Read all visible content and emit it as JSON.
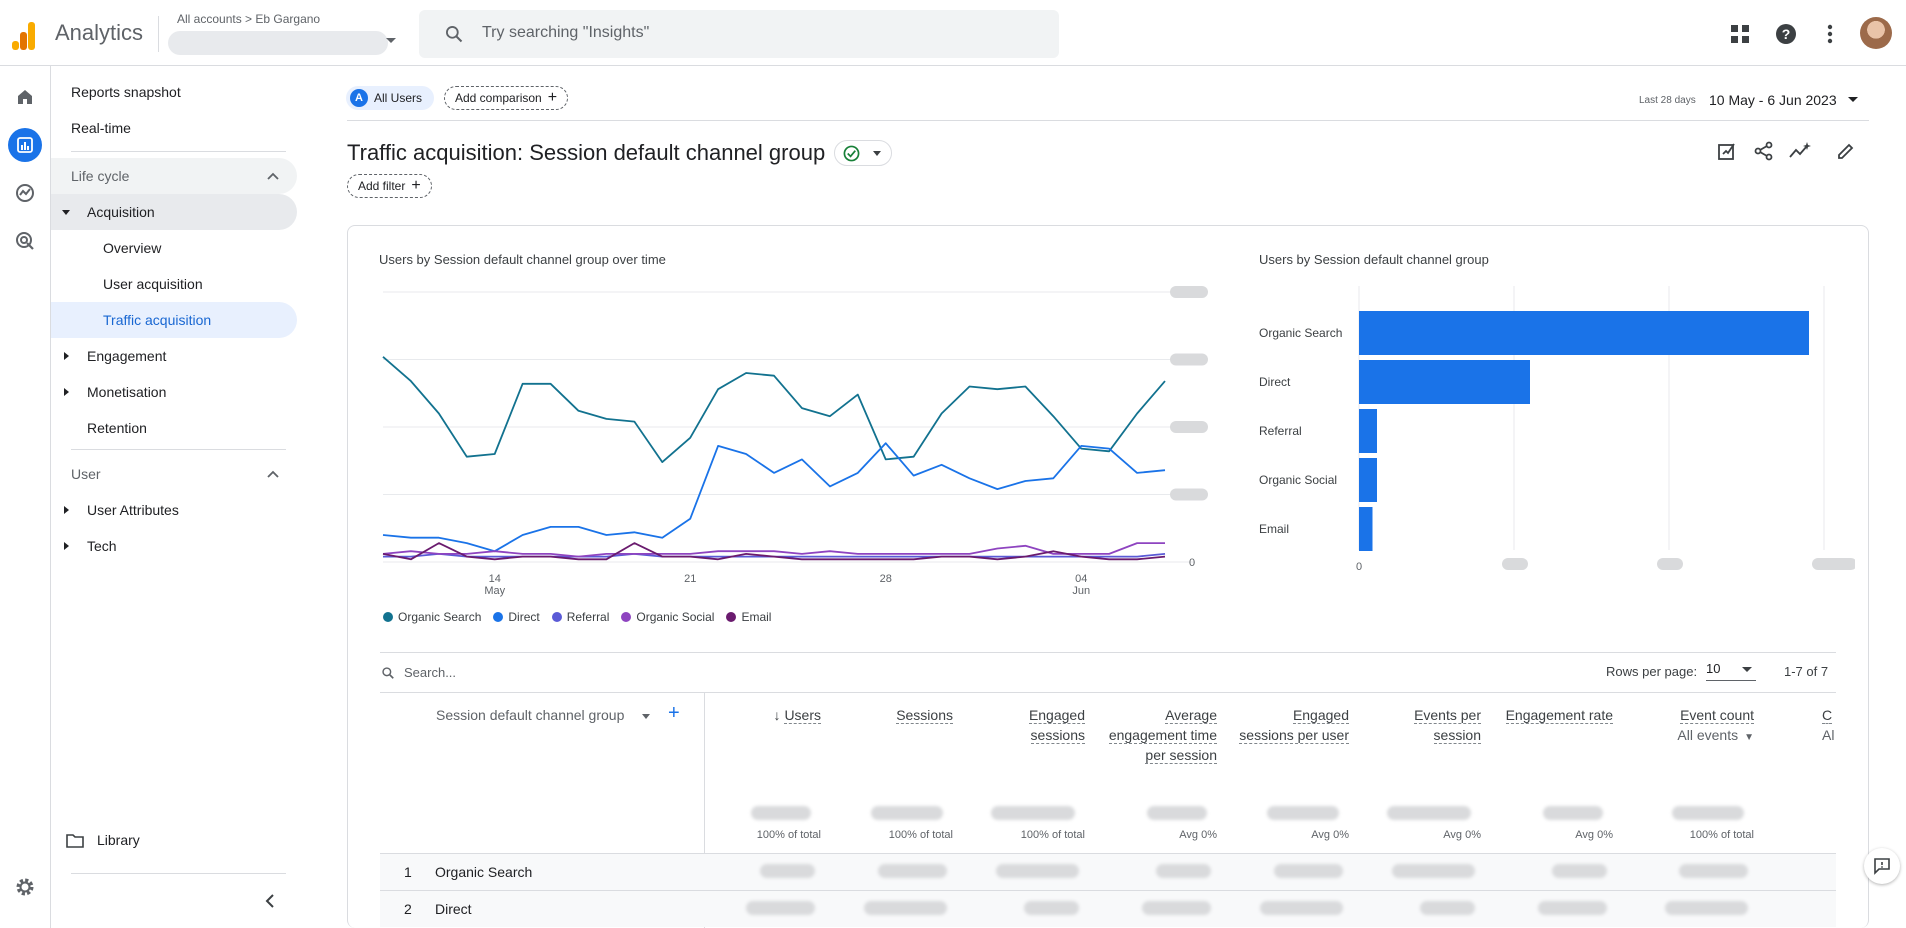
{
  "app": {
    "brand": "Analytics",
    "breadcrumb_all": "All accounts",
    "breadcrumb_account": "Eb Gargano",
    "search_placeholder": "Try searching \"Insights\""
  },
  "nav": {
    "reports_snapshot": "Reports snapshot",
    "realtime": "Real-time",
    "lifecycle": "Life cycle",
    "acquisition": "Acquisition",
    "overview": "Overview",
    "user_acquisition": "User acquisition",
    "traffic_acquisition": "Traffic acquisition",
    "engagement": "Engagement",
    "monetisation": "Monetisation",
    "retention": "Retention",
    "user": "User",
    "user_attributes": "User Attributes",
    "tech": "Tech",
    "library": "Library"
  },
  "header": {
    "segment_badge": "A",
    "segment_label": "All Users",
    "add_comparison": "Add comparison",
    "date_small": "Last 28 days",
    "date_range": "10 May - 6 Jun 2023",
    "title": "Traffic acquisition: Session default channel group",
    "add_filter": "Add filter"
  },
  "chart_data": [
    {
      "type": "line",
      "title": "Users by Session default channel group over time",
      "x_ticks": [
        {
          "label": "14",
          "sub": "May"
        },
        {
          "label": "21",
          "sub": ""
        },
        {
          "label": "28",
          "sub": ""
        },
        {
          "label": "04",
          "sub": "Jun"
        }
      ],
      "y_ticks_visible": [
        "0"
      ],
      "series": [
        {
          "name": "Organic Search",
          "color": "#12728f",
          "values": [
            0.76,
            0.67,
            0.55,
            0.39,
            0.4,
            0.66,
            0.66,
            0.56,
            0.53,
            0.52,
            0.37,
            0.46,
            0.64,
            0.7,
            0.69,
            0.57,
            0.54,
            0.62,
            0.38,
            0.39,
            0.55,
            0.65,
            0.64,
            0.65,
            0.54,
            0.42,
            0.41,
            0.55,
            0.67
          ]
        },
        {
          "name": "Direct",
          "color": "#1a73e8",
          "values": [
            0.1,
            0.09,
            0.09,
            0.07,
            0.04,
            0.1,
            0.13,
            0.13,
            0.1,
            0.11,
            0.09,
            0.16,
            0.43,
            0.4,
            0.33,
            0.38,
            0.28,
            0.33,
            0.44,
            0.32,
            0.36,
            0.31,
            0.27,
            0.3,
            0.31,
            0.43,
            0.42,
            0.33,
            0.34
          ]
        },
        {
          "name": "Referral",
          "color": "#5a5ad6",
          "values": [
            0.02,
            0.02,
            0.03,
            0.02,
            0.02,
            0.02,
            0.02,
            0.02,
            0.02,
            0.03,
            0.02,
            0.02,
            0.02,
            0.02,
            0.02,
            0.02,
            0.02,
            0.02,
            0.02,
            0.02,
            0.02,
            0.02,
            0.02,
            0.02,
            0.02,
            0.02,
            0.02,
            0.02,
            0.03
          ]
        },
        {
          "name": "Organic Social",
          "color": "#8e44c0",
          "values": [
            0.03,
            0.04,
            0.03,
            0.03,
            0.04,
            0.03,
            0.03,
            0.02,
            0.03,
            0.03,
            0.03,
            0.03,
            0.04,
            0.04,
            0.04,
            0.03,
            0.04,
            0.03,
            0.03,
            0.03,
            0.03,
            0.03,
            0.05,
            0.06,
            0.03,
            0.03,
            0.03,
            0.07,
            0.07
          ]
        },
        {
          "name": "Email",
          "color": "#6a1b6e",
          "values": [
            0.03,
            0.01,
            0.07,
            0.02,
            0.01,
            0.02,
            0.02,
            0.01,
            0.01,
            0.07,
            0.02,
            0.02,
            0.01,
            0.03,
            0.02,
            0.01,
            0.01,
            0.01,
            0.01,
            0.01,
            0.02,
            0.02,
            0.01,
            0.02,
            0.04,
            0.02,
            0.01,
            0.01,
            0.02
          ]
        }
      ]
    },
    {
      "type": "bar",
      "orientation": "horizontal",
      "title": "Users by Session default channel group",
      "categories": [
        "Organic Search",
        "Direct",
        "Referral",
        "Organic Social",
        "Email"
      ],
      "values": [
        1.0,
        0.38,
        0.04,
        0.04,
        0.03
      ],
      "x_ticks_visible": [
        "0"
      ],
      "color": "#1a73e8"
    }
  ],
  "table": {
    "search_placeholder": "Search...",
    "rows_per_page_label": "Rows per page:",
    "rows_per_page_value": "10",
    "pager": "1-7 of 7",
    "dimension_header": "Session default channel group",
    "columns": [
      {
        "label": "Users",
        "total": "100% of total",
        "sorted": true
      },
      {
        "label": "Sessions",
        "total": "100% of total"
      },
      {
        "label": "Engaged sessions",
        "total": "100% of total"
      },
      {
        "label": "Average engagement time per session",
        "total": "Avg 0%"
      },
      {
        "label": "Engaged sessions per user",
        "total": "Avg 0%"
      },
      {
        "label": "Events per session",
        "total": "Avg 0%"
      },
      {
        "label": "Engagement rate",
        "total": "Avg 0%"
      },
      {
        "label": "Event count",
        "sub": "All events",
        "total": "100% of total"
      }
    ],
    "cut_column_label": "C",
    "cut_column_sub": "Al",
    "rows": [
      {
        "num": "1",
        "name": "Organic Search"
      },
      {
        "num": "2",
        "name": "Direct"
      }
    ]
  }
}
